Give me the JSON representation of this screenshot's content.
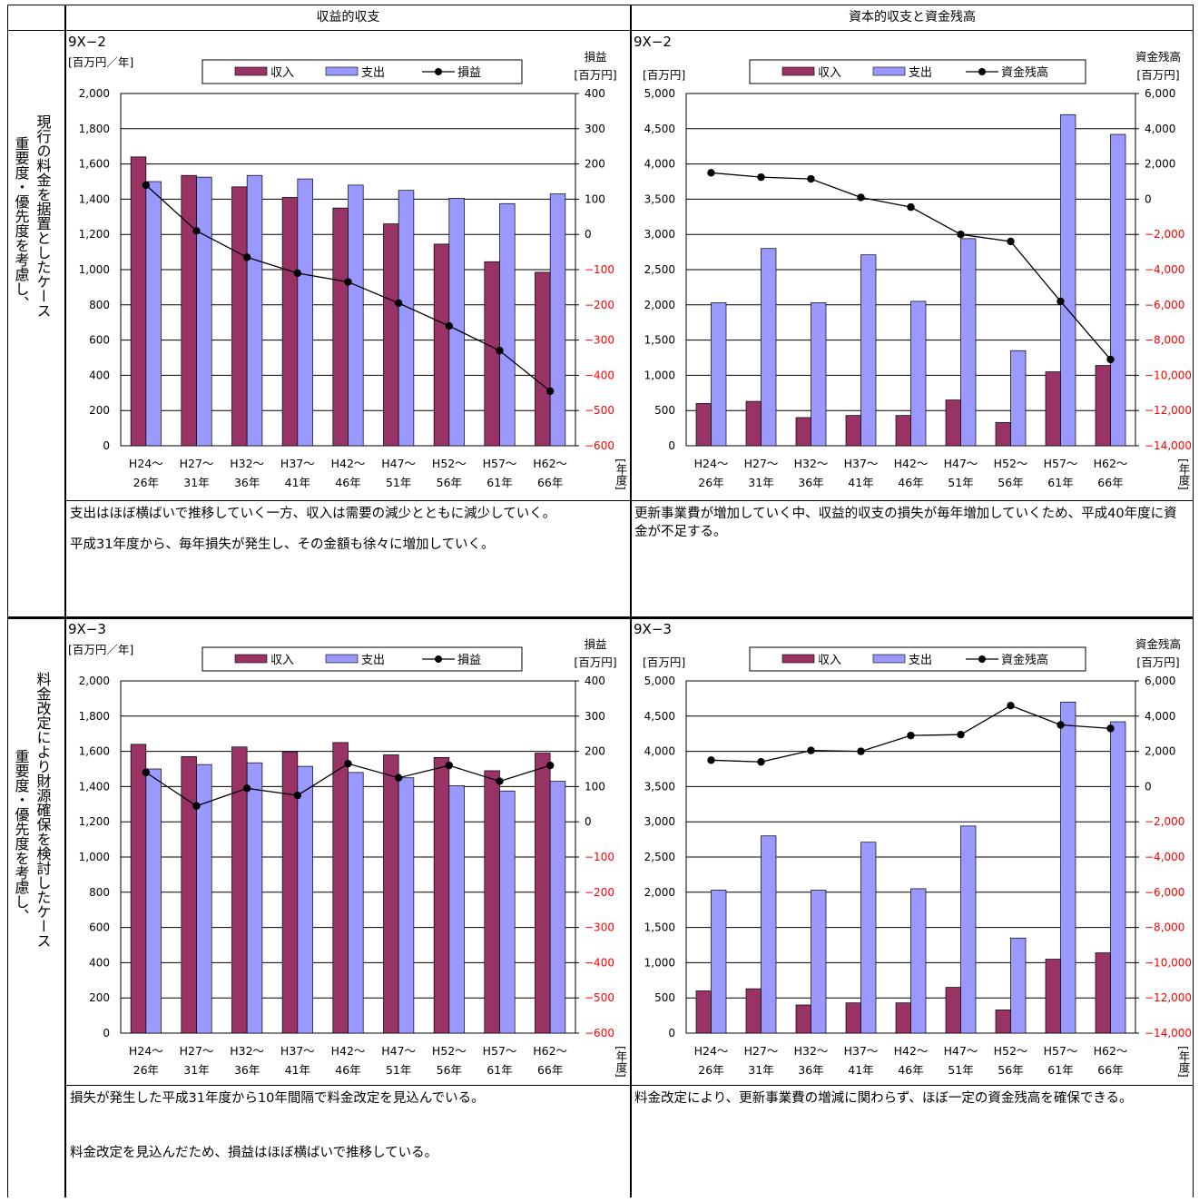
{
  "headers": {
    "left": "収益的収支",
    "right": "資本的収支と資金残高"
  },
  "rows": [
    {
      "side_col1": "重要度・優先度を考慮し、",
      "side_col2": "現行の料金を据置としたケース",
      "left_desc": [
        "支出はほぼ横ばいで推移していく一方、収入は需要の減少とともに減少していく。",
        "平成31年度から、毎年損失が発生し、その金額も徐々に増加していく。"
      ],
      "right_desc": [
        "更新事業費が増加していく中、収益的収支の損失が毎年増加していくため、平成40年度に資金が不足する。"
      ]
    },
    {
      "side_col1": "重要度・優先度を考慮し、",
      "side_col2": "料金改定により財源確保を検討したケース",
      "left_desc": [
        "損失が発生した平成31年度から10年間隔で料金改定を見込んでいる。",
        "料金改定を見込んだため、損益はほぼ横ばいで推移している。"
      ],
      "right_desc": [
        "料金改定により、更新事業費の増減に関わらず、ほぼ一定の資金残高を確保できる。"
      ]
    }
  ],
  "chart_data": [
    {
      "type": "bar",
      "title": "9X−2",
      "ylabel": "[百万円／年]",
      "y2label_line1": "損益",
      "y2label_line2": "[百万円]",
      "xlabel": "[年度]",
      "categories": [
        [
          "H24〜",
          "26年"
        ],
        [
          "H27〜",
          "31年"
        ],
        [
          "H32〜",
          "36年"
        ],
        [
          "H37〜",
          "41年"
        ],
        [
          "H42〜",
          "46年"
        ],
        [
          "H47〜",
          "51年"
        ],
        [
          "H52〜",
          "56年"
        ],
        [
          "H57〜",
          "61年"
        ],
        [
          "H62〜",
          "66年"
        ]
      ],
      "ylim": [
        0,
        2000
      ],
      "yticks": [
        0,
        200,
        400,
        600,
        800,
        1000,
        1200,
        1400,
        1600,
        1800,
        2000
      ],
      "y2lim": [
        -600,
        400
      ],
      "y2ticks": [
        -600,
        -500,
        -400,
        -300,
        -200,
        -100,
        0,
        100,
        200,
        300,
        400
      ],
      "grid": true,
      "legend_position": "top",
      "series": [
        {
          "name": "収入",
          "kind": "bar",
          "axis": "left",
          "color": "#993366",
          "values": [
            1640,
            1535,
            1470,
            1410,
            1350,
            1260,
            1145,
            1045,
            985
          ]
        },
        {
          "name": "支出",
          "kind": "bar",
          "axis": "left",
          "color": "#9999ff",
          "values": [
            1500,
            1525,
            1535,
            1515,
            1480,
            1450,
            1405,
            1375,
            1430
          ]
        },
        {
          "name": "損益",
          "kind": "line",
          "axis": "right",
          "color": "#000000",
          "values": [
            140,
            10,
            -65,
            -110,
            -135,
            -195,
            -260,
            -330,
            -445
          ]
        }
      ]
    },
    {
      "type": "bar",
      "title": "9X−2",
      "ylabel": "[百万円]",
      "y2label_line1": "資金残高",
      "y2label_line2": "[百万円]",
      "xlabel": "[年度]",
      "categories": [
        [
          "H24〜",
          "26年"
        ],
        [
          "H27〜",
          "31年"
        ],
        [
          "H32〜",
          "36年"
        ],
        [
          "H37〜",
          "41年"
        ],
        [
          "H42〜",
          "46年"
        ],
        [
          "H47〜",
          "51年"
        ],
        [
          "H52〜",
          "56年"
        ],
        [
          "H57〜",
          "61年"
        ],
        [
          "H62〜",
          "66年"
        ]
      ],
      "ylim": [
        0,
        5000
      ],
      "yticks": [
        0,
        500,
        1000,
        1500,
        2000,
        2500,
        3000,
        3500,
        4000,
        4500,
        5000
      ],
      "y2lim": [
        -14000,
        6000
      ],
      "y2ticks": [
        -14000,
        -12000,
        -10000,
        -8000,
        -6000,
        -4000,
        -2000,
        0,
        2000,
        4000,
        6000
      ],
      "grid": true,
      "legend_position": "top",
      "series": [
        {
          "name": "収入",
          "kind": "bar",
          "axis": "left",
          "color": "#993366",
          "values": [
            600,
            630,
            400,
            430,
            430,
            650,
            330,
            1050,
            1140
          ]
        },
        {
          "name": "支出",
          "kind": "bar",
          "axis": "left",
          "color": "#9999ff",
          "values": [
            2030,
            2800,
            2030,
            2710,
            2050,
            2940,
            1350,
            4700,
            4420
          ]
        },
        {
          "name": "資金残高",
          "kind": "line",
          "axis": "right",
          "color": "#000000",
          "values": [
            1500,
            1250,
            1150,
            100,
            -450,
            -2000,
            -2400,
            -5800,
            -9100
          ]
        }
      ]
    },
    {
      "type": "bar",
      "title": "9X−3",
      "ylabel": "[百万円／年]",
      "y2label_line1": "損益",
      "y2label_line2": "[百万円]",
      "xlabel": "[年度]",
      "categories": [
        [
          "H24〜",
          "26年"
        ],
        [
          "H27〜",
          "31年"
        ],
        [
          "H32〜",
          "36年"
        ],
        [
          "H37〜",
          "41年"
        ],
        [
          "H42〜",
          "46年"
        ],
        [
          "H47〜",
          "51年"
        ],
        [
          "H52〜",
          "56年"
        ],
        [
          "H57〜",
          "61年"
        ],
        [
          "H62〜",
          "66年"
        ]
      ],
      "ylim": [
        0,
        2000
      ],
      "yticks": [
        0,
        200,
        400,
        600,
        800,
        1000,
        1200,
        1400,
        1600,
        1800,
        2000
      ],
      "y2lim": [
        -600,
        400
      ],
      "y2ticks": [
        -600,
        -500,
        -400,
        -300,
        -200,
        -100,
        0,
        100,
        200,
        300,
        400
      ],
      "grid": true,
      "legend_position": "top",
      "series": [
        {
          "name": "収入",
          "kind": "bar",
          "axis": "left",
          "color": "#993366",
          "values": [
            1640,
            1570,
            1625,
            1595,
            1650,
            1580,
            1565,
            1490,
            1590
          ]
        },
        {
          "name": "支出",
          "kind": "bar",
          "axis": "left",
          "color": "#9999ff",
          "values": [
            1500,
            1525,
            1535,
            1515,
            1480,
            1450,
            1405,
            1375,
            1430
          ]
        },
        {
          "name": "損益",
          "kind": "line",
          "axis": "right",
          "color": "#000000",
          "values": [
            140,
            45,
            95,
            75,
            165,
            125,
            160,
            115,
            160
          ]
        }
      ]
    },
    {
      "type": "bar",
      "title": "9X−3",
      "ylabel": "[百万円]",
      "y2label_line1": "資金残高",
      "y2label_line2": "[百万円]",
      "xlabel": "[年度]",
      "categories": [
        [
          "H24〜",
          "26年"
        ],
        [
          "H27〜",
          "31年"
        ],
        [
          "H32〜",
          "36年"
        ],
        [
          "H37〜",
          "41年"
        ],
        [
          "H42〜",
          "46年"
        ],
        [
          "H47〜",
          "51年"
        ],
        [
          "H52〜",
          "56年"
        ],
        [
          "H57〜",
          "61年"
        ],
        [
          "H62〜",
          "66年"
        ]
      ],
      "ylim": [
        0,
        5000
      ],
      "yticks": [
        0,
        500,
        1000,
        1500,
        2000,
        2500,
        3000,
        3500,
        4000,
        4500,
        5000
      ],
      "y2lim": [
        -14000,
        6000
      ],
      "y2ticks": [
        -14000,
        -12000,
        -10000,
        -8000,
        -6000,
        -4000,
        -2000,
        0,
        2000,
        4000,
        6000
      ],
      "grid": true,
      "legend_position": "top",
      "series": [
        {
          "name": "収入",
          "kind": "bar",
          "axis": "left",
          "color": "#993366",
          "values": [
            600,
            630,
            400,
            430,
            430,
            650,
            330,
            1050,
            1140
          ]
        },
        {
          "name": "支出",
          "kind": "bar",
          "axis": "left",
          "color": "#9999ff",
          "values": [
            2030,
            2800,
            2030,
            2710,
            2050,
            2940,
            1350,
            4700,
            4420
          ]
        },
        {
          "name": "資金残高",
          "kind": "line",
          "axis": "right",
          "color": "#000000",
          "values": [
            1500,
            1400,
            2050,
            2000,
            2900,
            2950,
            4600,
            3500,
            3300
          ]
        }
      ]
    }
  ]
}
